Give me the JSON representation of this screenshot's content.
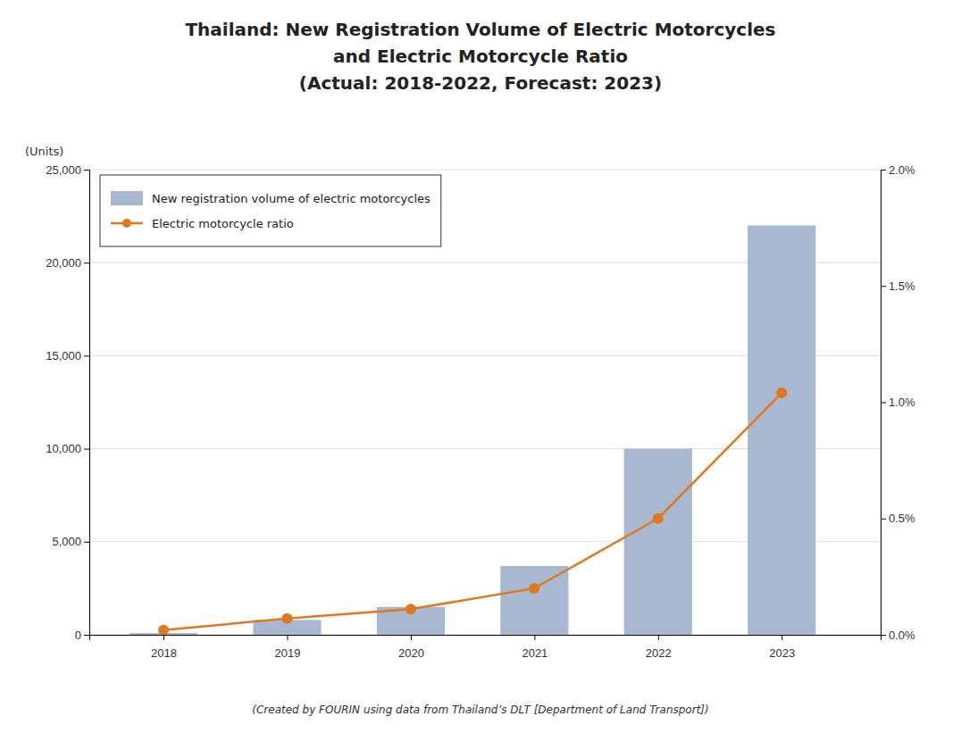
{
  "chart_data": {
    "type": "bar",
    "title": [
      "Thailand: New Registration Volume of Electric Motorcycles",
      "and Electric Motorcycle Ratio",
      "(Actual: 2018-2022, Forecast: 2023)"
    ],
    "ylabel": "(Units)",
    "annotations": [
      "(Created by FOURIN using data from Thailand’s DLT [Department of Land Transport])"
    ],
    "x": [
      2018,
      2019,
      2020,
      2021,
      2022,
      2023
    ],
    "xlim": [
      2017.4,
      2023.8
    ],
    "xticks": [
      2018,
      2019,
      2020,
      2021,
      2022,
      2023
    ],
    "series": [
      {
        "name": "New registration volume of electric motorcycles",
        "type": "bar",
        "color": "#a8b8d0",
        "values": [
          100,
          800,
          1500,
          3700,
          10000,
          22000
        ]
      },
      {
        "name": "Electric motorcycle ratio",
        "type": "line",
        "color": "#e07820",
        "marker": "circle",
        "axis": "y2",
        "values": [
          0.0002,
          0.0007,
          0.0011,
          0.002,
          0.005,
          0.0104
        ]
      }
    ],
    "ylim": [
      0,
      25000
    ],
    "yticks": [
      0,
      {
        "value": 5000,
        "label": "5,000"
      },
      {
        "value": 10000,
        "label": "10,000"
      },
      {
        "value": 15000,
        "label": "15,000"
      },
      {
        "value": 20000,
        "label": "20,000"
      },
      {
        "value": 25000,
        "label": "25,000"
      }
    ],
    "y2lim": [
      0,
      0.02
    ],
    "y2ticks": [
      {
        "value": 0.0,
        "label": "0.0%"
      },
      {
        "value": 0.005,
        "label": "0.5%"
      },
      {
        "value": 0.01,
        "label": "1.0%"
      },
      {
        "value": 0.015,
        "label": "1.5%"
      },
      {
        "value": 0.02,
        "label": "2.0%"
      }
    ],
    "grid": true,
    "legend": "upper left"
  }
}
